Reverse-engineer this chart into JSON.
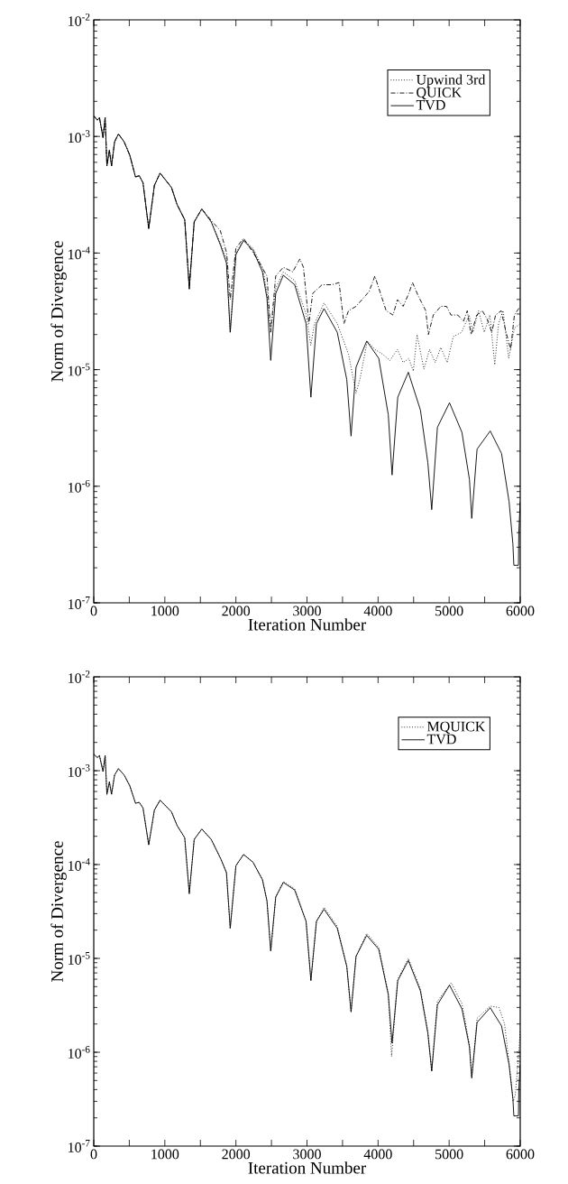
{
  "chart_data": [
    {
      "type": "line",
      "xlabel": "Iteration Number",
      "ylabel": "Norm of Divergence",
      "log": "y",
      "grid": false,
      "legend": "top right",
      "marker": "none",
      "xlim": [
        0,
        6000
      ],
      "ylim": [
        1e-07,
        0.01
      ],
      "xticks": [
        0,
        {
          "value": 500,
          "label": null
        },
        1000,
        {
          "value": 1500,
          "label": null
        },
        2000,
        {
          "value": 2500,
          "label": null
        },
        3000,
        {
          "value": 3500,
          "label": null
        },
        4000,
        {
          "value": 4500,
          "label": null
        },
        5000,
        {
          "value": 5500,
          "label": null
        },
        6000
      ],
      "yticks": [
        {
          "value": 1e-07,
          "label": "10$^{-7}$"
        },
        {
          "value": 1e-06,
          "label": "10$^{-6}$"
        },
        {
          "value": 1e-05,
          "label": "10$^{-5}$"
        },
        {
          "value": 0.0001,
          "label": "10$^{-4}$"
        },
        {
          "value": 0.001,
          "label": "10$^{-3}$"
        },
        {
          "value": 0.01,
          "label": "10$^{-2}$"
        }
      ],
      "series": [
        {
          "name": "Upwind 3rd",
          "color": "#000000",
          "line_style": "dotted",
          "x": [
            0,
            50,
            80,
            130,
            160,
            185,
            220,
            250,
            293,
            347,
            427,
            507,
            587,
            640,
            693,
            773,
            853,
            933,
            1093,
            1173,
            1280,
            1344,
            1413,
            1520,
            1653,
            1787,
            1867,
            1920,
            2000,
            2107,
            2240,
            2373,
            2437,
            2490,
            2560,
            2667,
            2827,
            2987,
            3053,
            3106,
            3240,
            3426,
            3584,
            3690,
            3743,
            3849,
            3955,
            4061,
            4167,
            4273,
            4353,
            4432,
            4496,
            4549,
            4645,
            4724,
            4804,
            4883,
            4973,
            5058,
            5175,
            5281,
            5334,
            5414,
            5494,
            5573,
            5642,
            5695,
            5759,
            5838,
            5918,
            6000
          ],
          "values": [
            0.0015,
            0.00138,
            0.00145,
            0.00098,
            0.00145,
            0.00056,
            0.00076,
            0.00056,
            0.0009,
            0.00105,
            0.0009,
            0.00069,
            0.00045,
            0.00046,
            0.0004,
            0.000162,
            0.00038,
            0.000485,
            0.000365,
            0.00026,
            0.000193,
            4.9e-05,
            0.000185,
            0.000239,
            0.000185,
            0.00012,
            9e-05,
            2.1e-05,
            0.0001,
            0.00013,
            0.00011,
            7.5e-05,
            4.6e-05,
            2.1e-05,
            5e-05,
            6.9e-05,
            5.8e-05,
            3e-05,
            1.62e-05,
            2.48e-05,
            3.73e-05,
            2.48e-05,
            1.36e-05,
            6.3e-06,
            8.2e-06,
            1.76e-05,
            1.49e-05,
            1.36e-05,
            1.2e-05,
            1.49e-05,
            1.15e-05,
            1.25e-05,
            9.7e-06,
            2e-05,
            1.01e-05,
            1.49e-05,
            1.15e-05,
            1.55e-05,
            1.15e-05,
            1.92e-05,
            2.09e-05,
            2.94e-05,
            2.09e-05,
            3.2e-05,
            2.09e-05,
            2.94e-05,
            1.1e-05,
            2.48e-05,
            3.2e-05,
            1.25e-05,
            2.27e-05,
            2.48e-05
          ]
        },
        {
          "name": "QUICK",
          "color": "#000000",
          "line_style": "dashed",
          "x": [
            0,
            50,
            80,
            130,
            160,
            185,
            220,
            250,
            293,
            347,
            427,
            507,
            587,
            640,
            693,
            773,
            853,
            933,
            1093,
            1173,
            1280,
            1344,
            1413,
            1520,
            1653,
            1780,
            1870,
            1920,
            2000,
            2107,
            2300,
            2437,
            2490,
            2560,
            2667,
            2800,
            2900,
            2950,
            3027,
            3080,
            3212,
            3350,
            3451,
            3520,
            3584,
            3690,
            3822,
            3875,
            3955,
            4034,
            4114,
            4210,
            4273,
            4353,
            4432,
            4485,
            4565,
            4671,
            4708,
            4777,
            4883,
            4963,
            5026,
            5122,
            5202,
            5255,
            5308,
            5388,
            5467,
            5536,
            5600,
            5653,
            5732,
            5801,
            5865,
            5918,
            6000
          ],
          "values": [
            0.0015,
            0.00138,
            0.00145,
            0.00098,
            0.00145,
            0.00056,
            0.00076,
            0.00056,
            0.0009,
            0.00105,
            0.0009,
            0.00069,
            0.00045,
            0.00046,
            0.0004,
            0.000162,
            0.00038,
            0.000485,
            0.000365,
            0.00026,
            0.000193,
            5.2e-05,
            0.000185,
            0.000239,
            0.00019,
            0.000156,
            0.0001,
            4e-05,
            0.00011,
            0.000134,
            8.9e-05,
            6.35e-05,
            2.09e-05,
            6.35e-05,
            7.55e-05,
            6.9e-05,
            8.9e-05,
            7.55e-05,
            2.48e-05,
            4.5e-05,
            5.35e-05,
            5.35e-05,
            5.58e-05,
            2.48e-05,
            3.2e-05,
            3.49e-05,
            4.3e-05,
            4.7e-05,
            6.35e-05,
            4.5e-05,
            3.2e-05,
            2.94e-05,
            3.98e-05,
            3.49e-05,
            4.5e-05,
            5.58e-05,
            4.3e-05,
            3.2e-05,
            2e-05,
            2.94e-05,
            3.49e-05,
            3.49e-05,
            2.94e-05,
            2.94e-05,
            2.6e-05,
            3.2e-05,
            2e-05,
            2.94e-05,
            3.2e-05,
            2.7e-05,
            2.09e-05,
            2.94e-05,
            3.2e-05,
            2.09e-05,
            1.49e-05,
            2.94e-05,
            3.49e-05
          ]
        },
        {
          "name": "TVD",
          "color": "#000000",
          "line_style": "solid",
          "x": [
            0,
            50,
            80,
            130,
            160,
            185,
            220,
            250,
            293,
            347,
            427,
            507,
            587,
            640,
            693,
            773,
            853,
            933,
            1093,
            1173,
            1280,
            1344,
            1413,
            1520,
            1653,
            1787,
            1867,
            1920,
            2000,
            2107,
            2240,
            2373,
            2437,
            2490,
            2560,
            2667,
            2827,
            2987,
            3055,
            3133,
            3240,
            3426,
            3560,
            3620,
            3690,
            3840,
            4010,
            4144,
            4197,
            4277,
            4426,
            4596,
            4700,
            4755,
            4835,
            5005,
            5180,
            5286,
            5318,
            5393,
            5578,
            5737,
            5843,
            5897,
            5910,
            5975,
            5980,
            6000
          ],
          "values": [
            0.0015,
            0.00138,
            0.00145,
            0.00098,
            0.00145,
            0.00056,
            0.00076,
            0.00056,
            0.0009,
            0.00105,
            0.0009,
            0.00069,
            0.00045,
            0.00046,
            0.0004,
            0.000162,
            0.00038,
            0.000485,
            0.000365,
            0.00026,
            0.000193,
            4.9e-05,
            0.000185,
            0.000239,
            0.000185,
            0.000115,
            8.2e-05,
            2.09e-05,
            9.7e-05,
            0.000128,
            0.000106,
            6.9e-05,
            4.1e-05,
            1.2e-05,
            4.5e-05,
            6.45e-05,
            5.35e-05,
            2.48e-05,
            5.8e-06,
            2.48e-05,
            3.34e-05,
            2.09e-05,
            8.2e-06,
            2.69e-06,
            1.05e-05,
            1.76e-05,
            1.25e-05,
            4.1e-06,
            1.25e-06,
            5.8e-06,
            9.5e-06,
            4.5e-06,
            1.6e-06,
            6.3e-07,
            3.2e-06,
            5.2e-06,
            2.9e-06,
            1.14e-06,
            5.3e-07,
            2.08e-06,
            2.98e-06,
            1.91e-06,
            7.4e-07,
            3.2e-07,
            2.1e-07,
            2.1e-07,
            4e-07,
            7.4e-07
          ]
        }
      ]
    },
    {
      "type": "line",
      "xlabel": "Iteration Number",
      "ylabel": "Norm of Divergence",
      "log": "y",
      "grid": false,
      "legend": "top right",
      "marker": "none",
      "xlim": [
        0,
        6000
      ],
      "ylim": [
        1e-07,
        0.01
      ],
      "xticks": [
        0,
        {
          "value": 500,
          "label": null
        },
        1000,
        {
          "value": 1500,
          "label": null
        },
        2000,
        {
          "value": 2500,
          "label": null
        },
        3000,
        {
          "value": 3500,
          "label": null
        },
        4000,
        {
          "value": 4500,
          "label": null
        },
        5000,
        {
          "value": 5500,
          "label": null
        },
        6000
      ],
      "yticks": [
        {
          "value": 1e-07,
          "label": "10$^{-7}$"
        },
        {
          "value": 1e-06,
          "label": "10$^{-6}$"
        },
        {
          "value": 1e-05,
          "label": "10$^{-5}$"
        },
        {
          "value": 0.0001,
          "label": "10$^{-4}$"
        },
        {
          "value": 0.001,
          "label": "10$^{-3}$"
        },
        {
          "value": 0.01,
          "label": "10$^{-2}$"
        }
      ],
      "series": [
        {
          "name": "MQUICK",
          "color": "#000000",
          "line_style": "dotted",
          "x": [
            0,
            50,
            80,
            130,
            160,
            185,
            220,
            250,
            293,
            347,
            427,
            507,
            587,
            640,
            693,
            773,
            853,
            933,
            1093,
            1173,
            1280,
            1344,
            1413,
            1520,
            1653,
            1787,
            1867,
            1920,
            2000,
            2107,
            2240,
            2373,
            2437,
            2490,
            2560,
            2667,
            2827,
            2987,
            3055,
            3133,
            3240,
            3426,
            3560,
            3620,
            3690,
            3840,
            4010,
            4144,
            4190,
            4277,
            4426,
            4596,
            4700,
            4755,
            4835,
            5030,
            5180,
            5286,
            5318,
            5393,
            5578,
            5700,
            5780,
            5860,
            5900,
            5930,
            5970,
            6000
          ],
          "values": [
            0.0015,
            0.00138,
            0.00145,
            0.00098,
            0.00145,
            0.00056,
            0.00076,
            0.00056,
            0.0009,
            0.00105,
            0.0009,
            0.00069,
            0.00045,
            0.00046,
            0.0004,
            0.000162,
            0.00038,
            0.000485,
            0.000365,
            0.00026,
            0.000193,
            4.9e-05,
            0.000185,
            0.000239,
            0.000185,
            0.000115,
            8.2e-05,
            2.09e-05,
            9.7e-05,
            0.000128,
            0.000106,
            6.9e-05,
            4.1e-05,
            1.2e-05,
            4.5e-05,
            6.6e-05,
            5.5e-05,
            2.5e-05,
            5.8e-06,
            2.5e-05,
            3.5e-05,
            2.2e-05,
            8.2e-06,
            2.69e-06,
            1.05e-05,
            1.85e-05,
            1.3e-05,
            4.3e-06,
            9e-07,
            6e-06,
            1e-05,
            4.7e-06,
            1.7e-06,
            6.3e-07,
            3.5e-06,
            5.5e-06,
            3.3e-06,
            1.2e-06,
            5.5e-07,
            2.3e-06,
            3.1e-06,
            3e-06,
            2e-06,
            6e-07,
            3e-07,
            3.5e-07,
            8e-07,
            1.7e-06
          ]
        },
        {
          "name": "TVD",
          "color": "#000000",
          "line_style": "solid",
          "x": [
            0,
            50,
            80,
            130,
            160,
            185,
            220,
            250,
            293,
            347,
            427,
            507,
            587,
            640,
            693,
            773,
            853,
            933,
            1093,
            1173,
            1280,
            1344,
            1413,
            1520,
            1653,
            1787,
            1867,
            1920,
            2000,
            2107,
            2240,
            2373,
            2437,
            2490,
            2560,
            2667,
            2827,
            2987,
            3055,
            3133,
            3240,
            3426,
            3560,
            3620,
            3690,
            3840,
            4010,
            4144,
            4197,
            4277,
            4426,
            4596,
            4700,
            4755,
            4835,
            5005,
            5180,
            5286,
            5318,
            5393,
            5578,
            5737,
            5843,
            5897,
            5910,
            5975,
            5980,
            6000
          ],
          "values": [
            0.0015,
            0.00138,
            0.00145,
            0.00098,
            0.00145,
            0.00056,
            0.00076,
            0.00056,
            0.0009,
            0.00105,
            0.0009,
            0.00069,
            0.00045,
            0.00046,
            0.0004,
            0.000162,
            0.00038,
            0.000485,
            0.000365,
            0.00026,
            0.000193,
            4.9e-05,
            0.000185,
            0.000239,
            0.000185,
            0.000115,
            8.2e-05,
            2.09e-05,
            9.7e-05,
            0.000128,
            0.000106,
            6.9e-05,
            4.1e-05,
            1.2e-05,
            4.5e-05,
            6.45e-05,
            5.35e-05,
            2.48e-05,
            5.8e-06,
            2.48e-05,
            3.34e-05,
            2.09e-05,
            8.2e-06,
            2.69e-06,
            1.05e-05,
            1.76e-05,
            1.25e-05,
            4.1e-06,
            1.25e-06,
            5.8e-06,
            9.5e-06,
            4.5e-06,
            1.6e-06,
            6.3e-07,
            3.2e-06,
            5.2e-06,
            2.9e-06,
            1.14e-06,
            5.3e-07,
            2.08e-06,
            2.98e-06,
            1.91e-06,
            7.4e-07,
            3.2e-07,
            2.1e-07,
            2.1e-07,
            4e-07,
            7.4e-07
          ]
        }
      ]
    }
  ]
}
